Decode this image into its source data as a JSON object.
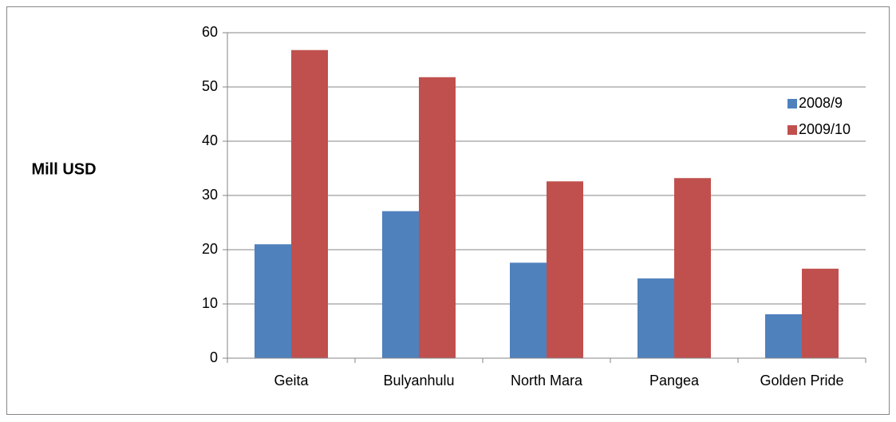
{
  "chart_data": {
    "type": "bar",
    "y_label": "Mill USD",
    "categories": [
      "Geita",
      "Bulyanhulu",
      "North Mara",
      "Pangea",
      "Golden Pride"
    ],
    "series": [
      {
        "name": "2008/9",
        "color": "#4f81bd",
        "values": [
          21.0,
          27.1,
          17.6,
          14.7,
          8.1
        ]
      },
      {
        "name": "2009/10",
        "color": "#c0504d",
        "values": [
          56.8,
          51.8,
          32.6,
          33.2,
          16.5
        ]
      }
    ],
    "ylim": [
      0,
      60
    ],
    "yticks": [
      0,
      10,
      20,
      30,
      40,
      50,
      60
    ],
    "grid": true,
    "legend": "right"
  }
}
